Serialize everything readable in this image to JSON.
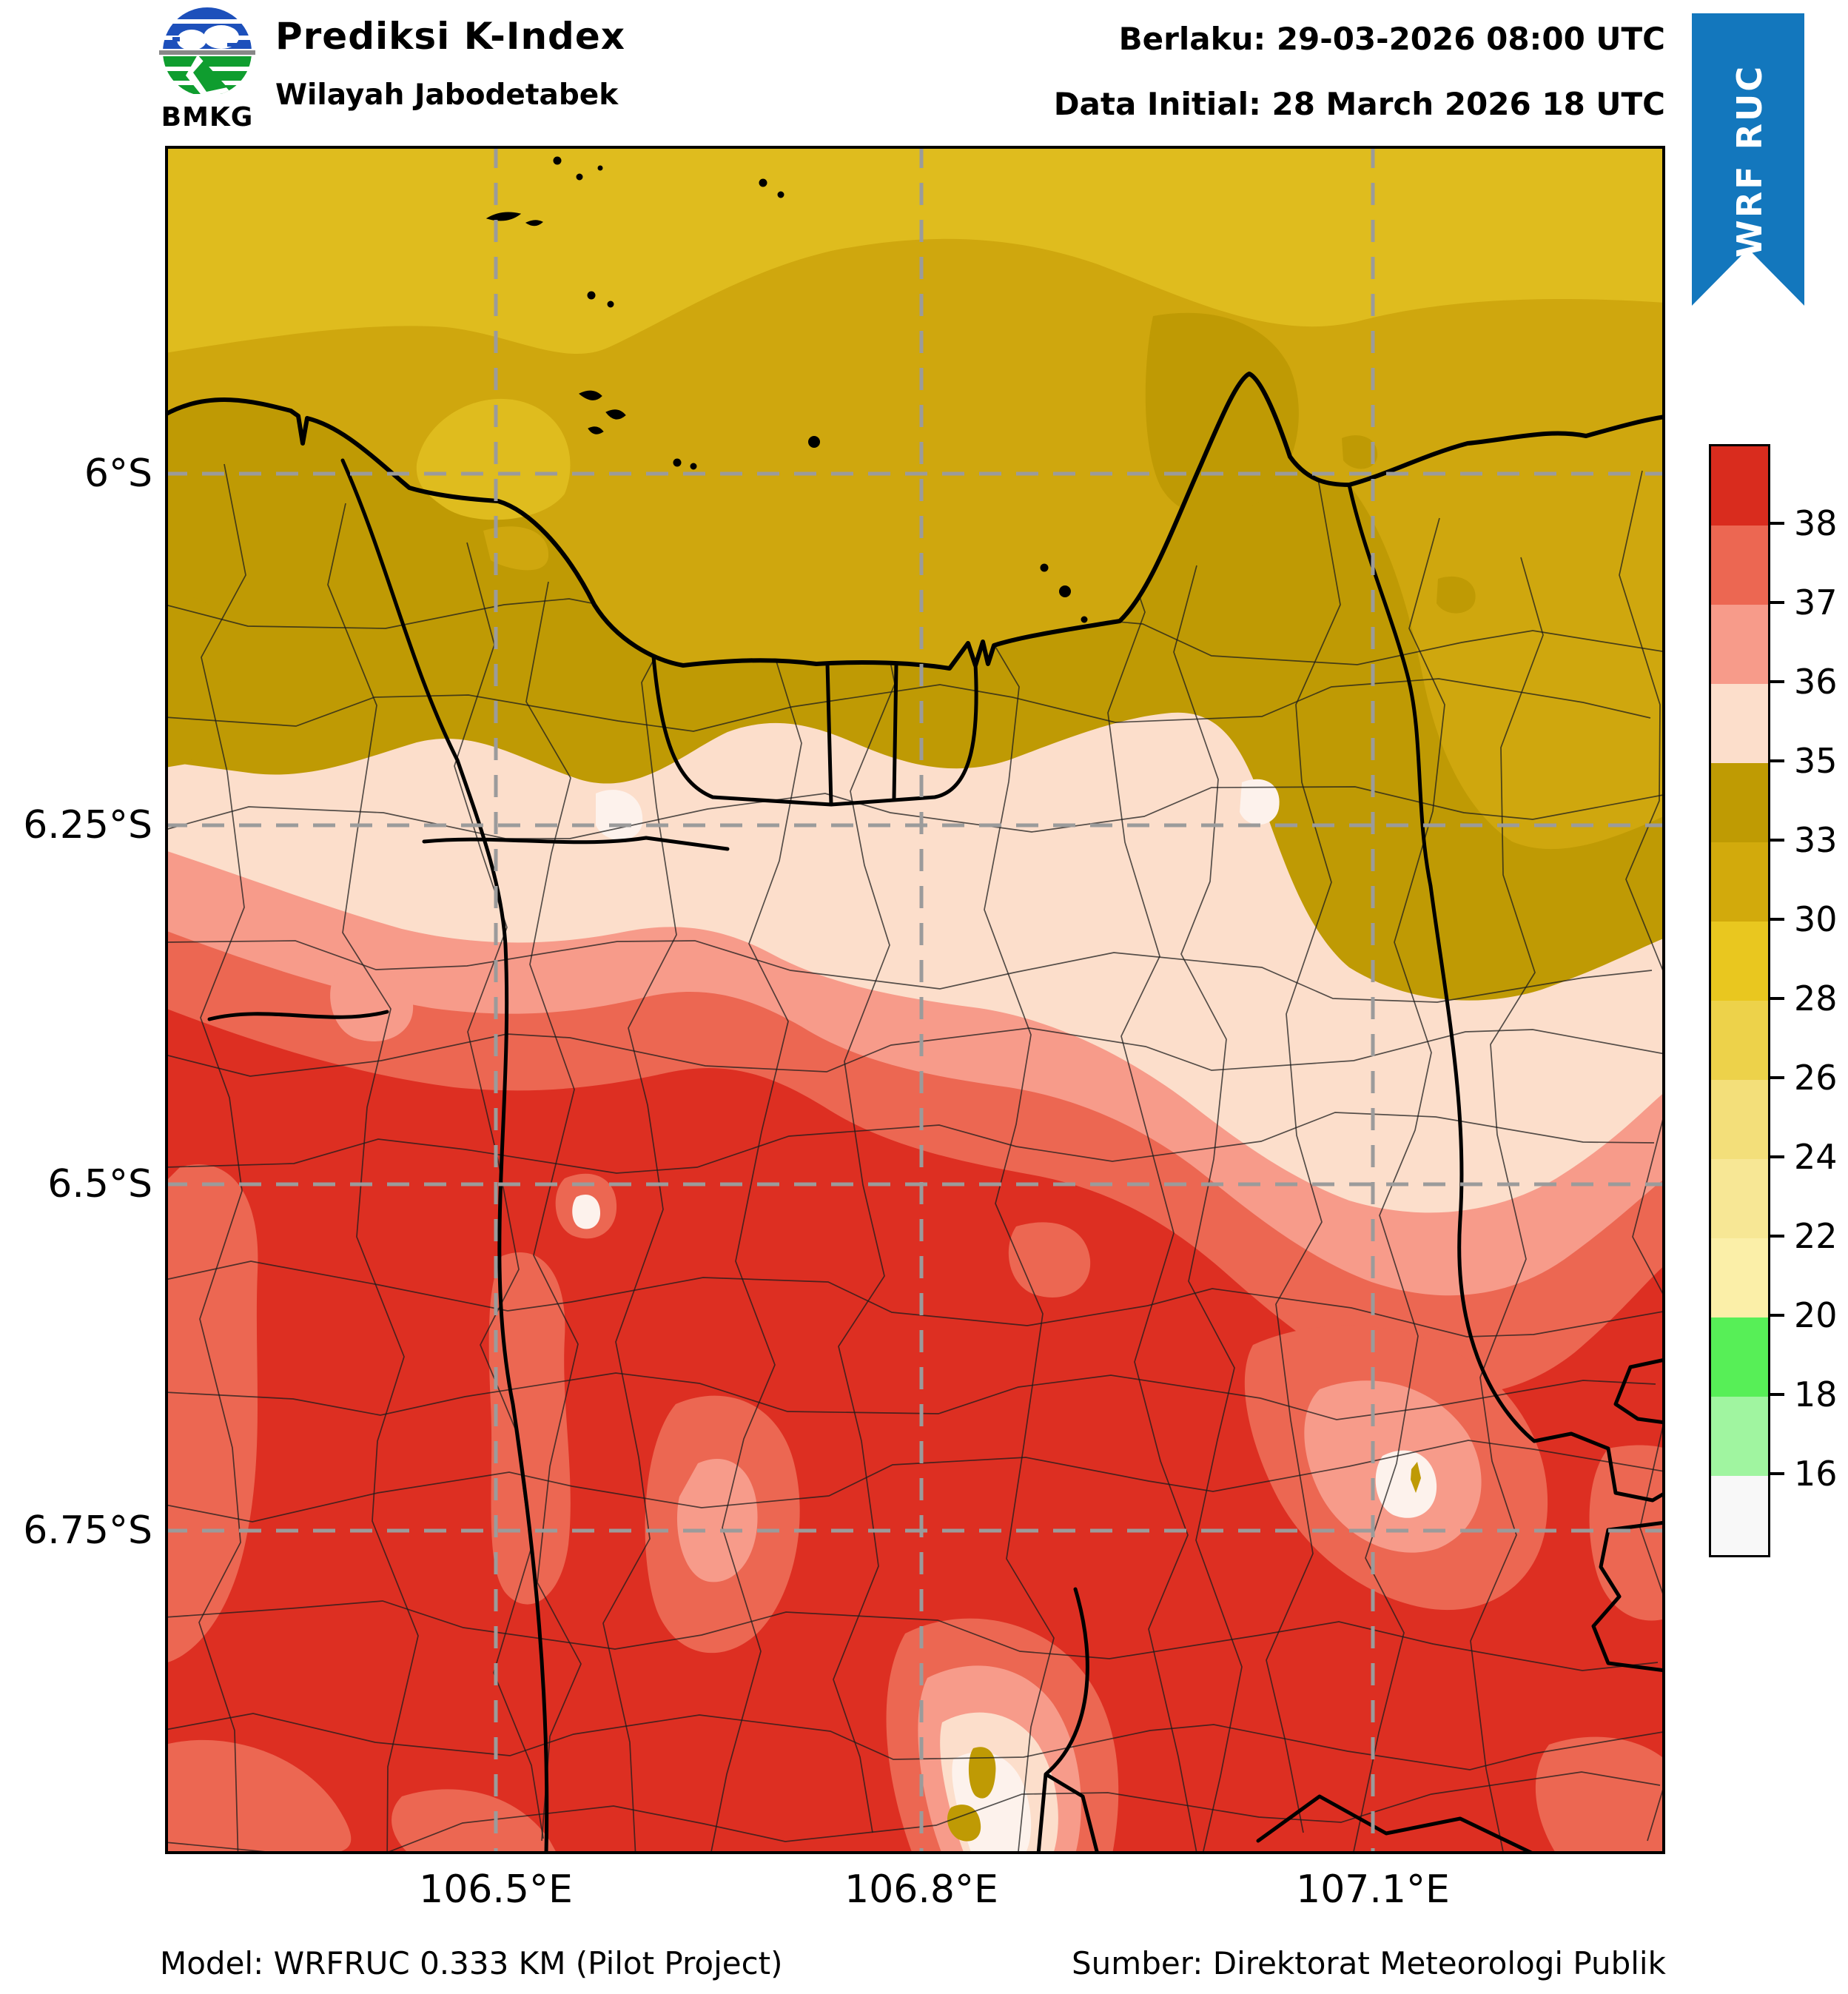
{
  "header": {
    "logo_text": "BMKG",
    "title": "Prediksi K-Index",
    "subtitle": "Wilayah Jabodetabek",
    "valid_label": "Berlaku: 29-03-2026 08:00 UTC",
    "initial_label": "Data Initial: 28 March 2026 18 UTC",
    "ribbon_label": "WRF RUC"
  },
  "footer": {
    "model": "Model: WRFRUC 0.333 KM (Pilot Project)",
    "source": "Sumber: Direktorat Meteorologi Publik"
  },
  "map": {
    "x_ticks": [
      "106.5°E",
      "106.8°E",
      "107.1°E"
    ],
    "y_ticks": [
      "6°S",
      "6.25°S",
      "6.5°S",
      "6.75°S"
    ]
  },
  "colorbar": {
    "tick_labels": [
      "38",
      "37",
      "36",
      "35",
      "33",
      "30",
      "28",
      "26",
      "24",
      "22",
      "20",
      "18",
      "16"
    ],
    "level_values": [
      16,
      18,
      20,
      22,
      24,
      26,
      28,
      30,
      33,
      35,
      36,
      37,
      38
    ],
    "segment_colors_top_to_bottom": [
      "#d92c1e",
      "#ec6752",
      "#f79b8a",
      "#fcdecb",
      "#bf9b03",
      "#d2aa0c",
      "#e9c71f",
      "#edd24a",
      "#f3df7a",
      "#f7e795",
      "#fbefa8",
      "#57ef57",
      "#a0f5a0",
      "#f8f8f8"
    ]
  },
  "palette": {
    "red_38": "#dd2f22",
    "red_37": "#ec6752",
    "salmon_36": "#f79b8a",
    "pink_35": "#fcdecb",
    "white_sub": "#fdf2ec",
    "gold_dark": "#bf9a04",
    "gold_mid": "#cfa70e",
    "gold_light": "#dfbc1e",
    "grid_gray": "#9b9b9b",
    "ribbon_blue": "#1377bd",
    "logo_blue": "#1d50bb",
    "logo_green": "#0f9d2f"
  }
}
